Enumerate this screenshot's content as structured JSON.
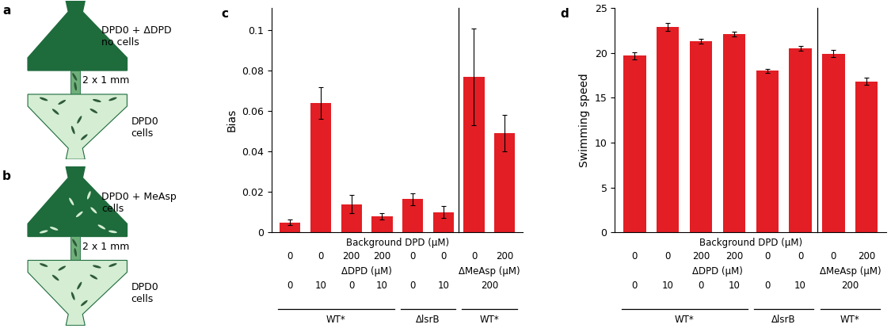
{
  "chart_data": [
    {
      "type": "bar",
      "title": "c",
      "y_label": "Bias",
      "color": "#e31e24",
      "values": [
        0.005,
        0.064,
        0.014,
        0.008,
        0.0165,
        0.01,
        0.077,
        0.049
      ],
      "errors": [
        0.0015,
        0.008,
        0.0045,
        0.0015,
        0.003,
        0.003,
        0.024,
        0.009
      ],
      "ylim": [
        0,
        0.111
      ],
      "yticks": [
        0,
        0.02,
        0.04,
        0.06,
        0.08,
        0.1
      ],
      "tick_labels": "y",
      "x_rows": [
        [
          {
            "label": "Background DPD (µM)",
            "start": 0,
            "end": 7,
            "values": [
              0,
              0,
              200,
              200,
              0,
              0,
              0,
              200
            ]
          }
        ],
        [
          {
            "label": "ΔDPD (µM)",
            "start": 0,
            "end": 5,
            "values": [
              0,
              10,
              0,
              10,
              0,
              10
            ]
          },
          {
            "label": "ΔMeAsp (µM)",
            "start": 6,
            "end": 7,
            "values": [
              200
            ]
          }
        ]
      ],
      "groups": [
        {
          "label": "WT*",
          "start": 0,
          "end": 3
        },
        {
          "label": "ΔlsrB",
          "start": 4,
          "end": 5
        },
        {
          "label": "WT*",
          "start": 6,
          "end": 7
        }
      ]
    },
    {
      "type": "bar",
      "title": "d",
      "y_label": "Swimming speed",
      "color": "#e31e24",
      "values": [
        19.7,
        22.9,
        21.3,
        22.1,
        18.0,
        20.5,
        19.9,
        16.8
      ],
      "errors": [
        0.4,
        0.45,
        0.3,
        0.3,
        0.2,
        0.3,
        0.4,
        0.4
      ],
      "ylim": [
        0,
        25
      ],
      "yticks": [
        0,
        5,
        10,
        15,
        20,
        25
      ],
      "tick_labels": "y",
      "x_rows": [
        [
          {
            "label": "Background DPD (µM)",
            "start": 0,
            "end": 7,
            "values": [
              0,
              0,
              200,
              200,
              0,
              0,
              0,
              200
            ]
          }
        ],
        [
          {
            "label": "ΔDPD (µM)",
            "start": 0,
            "end": 5,
            "values": [
              0,
              10,
              0,
              10,
              0,
              10
            ]
          },
          {
            "label": "ΔMeAsp (µM)",
            "start": 6,
            "end": 7,
            "values": [
              200
            ]
          }
        ]
      ],
      "groups": [
        {
          "label": "WT*",
          "start": 0,
          "end": 3
        },
        {
          "label": "ΔlsrB",
          "start": 4,
          "end": 5
        },
        {
          "label": "WT*",
          "start": 6,
          "end": 7
        }
      ]
    }
  ],
  "diagrams": [
    {
      "panel": "a",
      "top_text": [
        "DPD0 + ΔDPD",
        "no cells"
      ],
      "channel_text": "2 x 1 mm",
      "bottom_text": [
        "DPD0",
        "cells"
      ]
    },
    {
      "panel": "b",
      "top_text": [
        "DPD0 + MeAsp",
        "cells"
      ],
      "channel_text": "2 x 1 mm",
      "bottom_text": [
        "DPD0",
        "cells"
      ]
    }
  ]
}
